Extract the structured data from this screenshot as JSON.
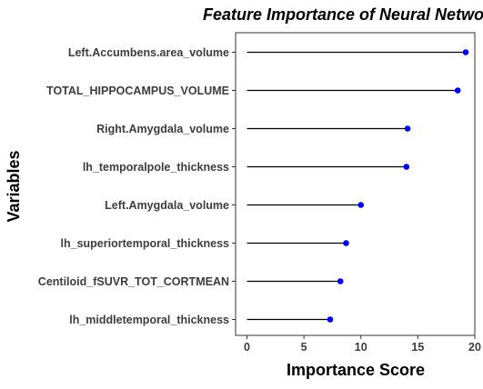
{
  "chart_data": {
    "type": "lollipop",
    "title": "Feature Importance of Neural Network",
    "xlabel": "Importance Score",
    "ylabel": "Variables",
    "xlim": [
      -1.0,
      20.0
    ],
    "xticks": [
      0,
      5,
      10,
      15,
      20
    ],
    "grid": false,
    "orientation": "horizontal",
    "categories": [
      "Left.Accumbens.area_volume",
      "TOTAL_HIPPOCAMPUS_VOLUME",
      "Right.Amygdala_volume",
      "lh_temporalpole_thickness",
      "Left.Amygdala_volume",
      "lh_superiortemporal_thickness",
      "Centiloid_fSUVR_TOT_CORTMEAN",
      "lh_middletemporal_thickness"
    ],
    "values": [
      19.2,
      18.5,
      14.1,
      14.0,
      10.0,
      8.7,
      8.2,
      7.3
    ],
    "colors": {
      "point": "#0000ee",
      "segment": "#000000",
      "axis": "#333333",
      "text": "#3d3d3d"
    }
  }
}
